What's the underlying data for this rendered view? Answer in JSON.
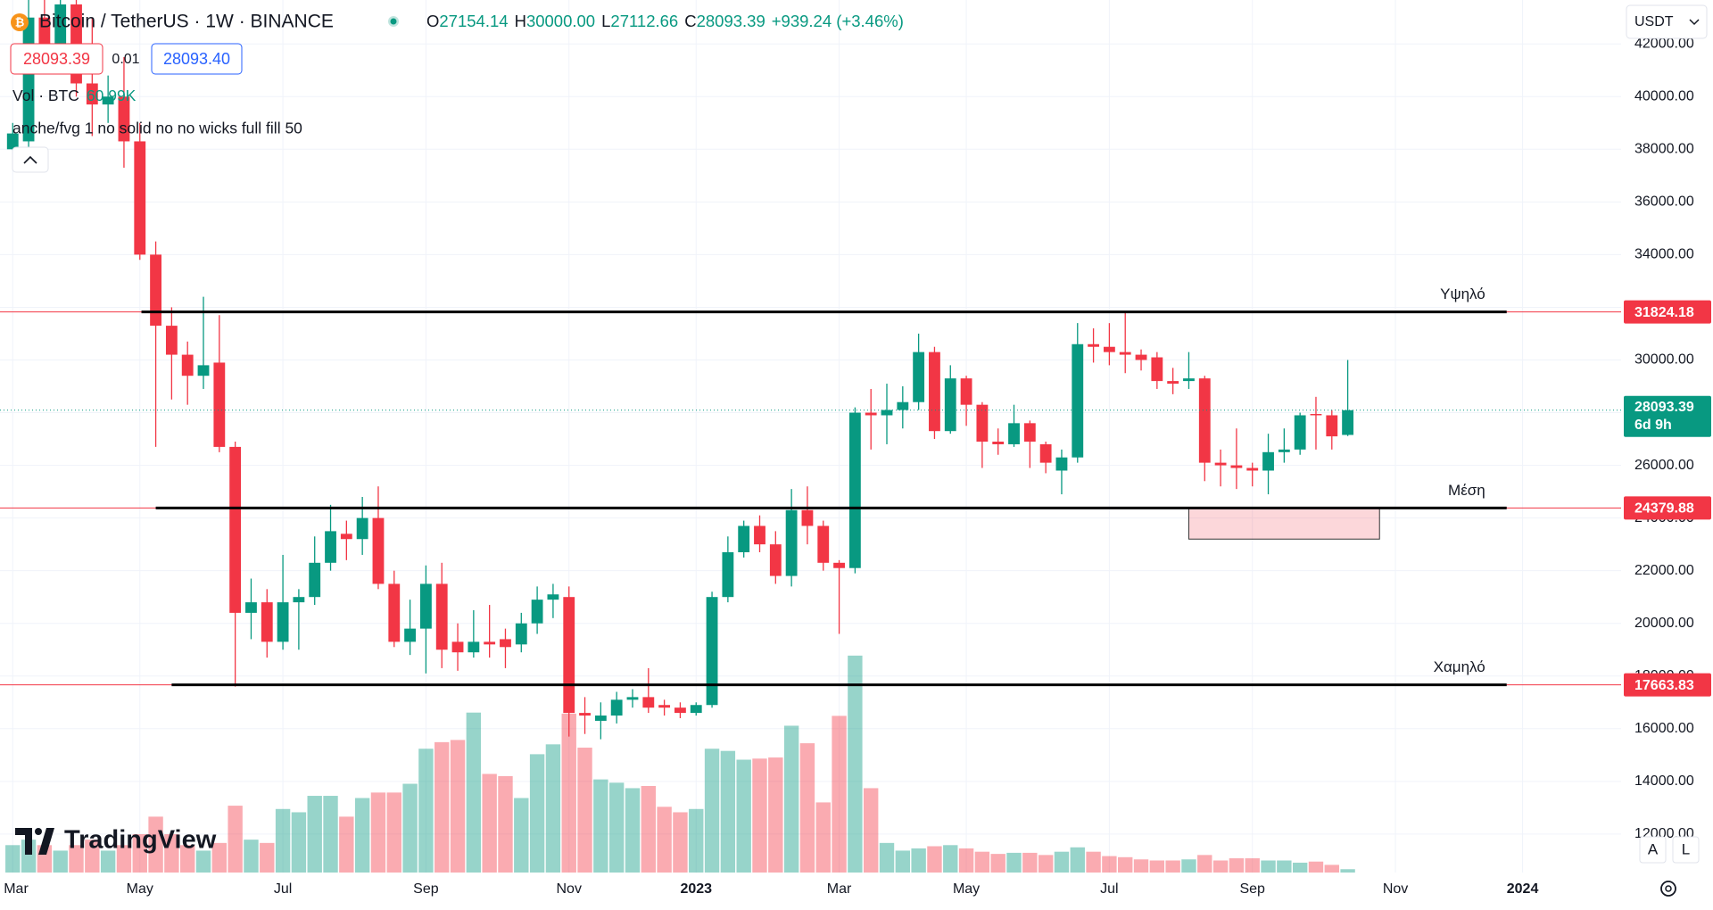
{
  "header": {
    "symbol": "Bitcoin / TetherUS · 1W · BINANCE",
    "ohlc": [
      {
        "key": "O",
        "value": "27154.14"
      },
      {
        "key": "H",
        "value": "30000.00"
      },
      {
        "key": "L",
        "value": "27112.66"
      },
      {
        "key": "C",
        "value": "28093.39"
      }
    ],
    "change": "+939.24 (+3.46%)",
    "sell": "28093.39",
    "spread": "0.01",
    "buy": "28093.40",
    "indicator": "anche/fvg 1 no solid no no wicks full fill 50",
    "currency": "USDT",
    "brand": "TradingView",
    "buttons": [
      "A",
      "L"
    ]
  },
  "chart_data": {
    "type": "candlestick",
    "colors": {
      "up": "#089981",
      "down": "#f23645"
    },
    "candles": [
      {
        "o": 38000,
        "h": 39000,
        "l": 37700,
        "c": 38600
      },
      {
        "o": 38300,
        "h": 45000,
        "l": 37800,
        "c": 43000
      },
      {
        "o": 43000,
        "h": 43800,
        "l": 41000,
        "c": 41500
      },
      {
        "o": 41500,
        "h": 44000,
        "l": 41000,
        "c": 43500
      },
      {
        "o": 43500,
        "h": 44200,
        "l": 40000,
        "c": 40500
      },
      {
        "o": 40500,
        "h": 43000,
        "l": 38500,
        "c": 39700
      },
      {
        "o": 39700,
        "h": 40800,
        "l": 39000,
        "c": 40000
      },
      {
        "o": 40000,
        "h": 41500,
        "l": 37300,
        "c": 38300
      },
      {
        "o": 38300,
        "h": 39000,
        "l": 33800,
        "c": 34000
      },
      {
        "o": 34000,
        "h": 34500,
        "l": 26700,
        "c": 31300
      },
      {
        "o": 31300,
        "h": 32000,
        "l": 28500,
        "c": 30200
      },
      {
        "o": 30200,
        "h": 30700,
        "l": 28300,
        "c": 29400
      },
      {
        "o": 29400,
        "h": 32400,
        "l": 28900,
        "c": 29800
      },
      {
        "o": 29900,
        "h": 31700,
        "l": 26500,
        "c": 26700
      },
      {
        "o": 26700,
        "h": 26900,
        "l": 17600,
        "c": 20400
      },
      {
        "o": 20400,
        "h": 21700,
        "l": 19400,
        "c": 20800
      },
      {
        "o": 20800,
        "h": 21300,
        "l": 18700,
        "c": 19300
      },
      {
        "o": 19300,
        "h": 22600,
        "l": 19000,
        "c": 20800
      },
      {
        "o": 20800,
        "h": 21300,
        "l": 19000,
        "c": 21000
      },
      {
        "o": 21000,
        "h": 23300,
        "l": 20700,
        "c": 22300
      },
      {
        "o": 22300,
        "h": 24500,
        "l": 22000,
        "c": 23500
      },
      {
        "o": 23400,
        "h": 23900,
        "l": 22400,
        "c": 23200
      },
      {
        "o": 23200,
        "h": 24800,
        "l": 22600,
        "c": 24000
      },
      {
        "o": 24000,
        "h": 25200,
        "l": 21300,
        "c": 21500
      },
      {
        "o": 21500,
        "h": 22000,
        "l": 19100,
        "c": 19300
      },
      {
        "o": 19300,
        "h": 20900,
        "l": 18800,
        "c": 19800
      },
      {
        "o": 19800,
        "h": 22200,
        "l": 18100,
        "c": 21500
      },
      {
        "o": 21500,
        "h": 22300,
        "l": 18300,
        "c": 19000
      },
      {
        "o": 19300,
        "h": 20000,
        "l": 18200,
        "c": 18900
      },
      {
        "o": 18900,
        "h": 20500,
        "l": 18700,
        "c": 19300
      },
      {
        "o": 19300,
        "h": 20700,
        "l": 18700,
        "c": 19200
      },
      {
        "o": 19400,
        "h": 19800,
        "l": 18300,
        "c": 19100
      },
      {
        "o": 19200,
        "h": 20400,
        "l": 18900,
        "c": 20000
      },
      {
        "o": 20000,
        "h": 21400,
        "l": 19600,
        "c": 20900
      },
      {
        "o": 20900,
        "h": 21500,
        "l": 20200,
        "c": 21100
      },
      {
        "o": 21000,
        "h": 21400,
        "l": 15700,
        "c": 16600
      },
      {
        "o": 16600,
        "h": 17200,
        "l": 15800,
        "c": 16500
      },
      {
        "o": 16300,
        "h": 17000,
        "l": 15600,
        "c": 16500
      },
      {
        "o": 16500,
        "h": 17400,
        "l": 16200,
        "c": 17100
      },
      {
        "o": 17100,
        "h": 17500,
        "l": 16800,
        "c": 17200
      },
      {
        "o": 17200,
        "h": 18300,
        "l": 16600,
        "c": 16800
      },
      {
        "o": 16900,
        "h": 17100,
        "l": 16500,
        "c": 16800
      },
      {
        "o": 16800,
        "h": 17000,
        "l": 16400,
        "c": 16600
      },
      {
        "o": 16600,
        "h": 17000,
        "l": 16500,
        "c": 16900
      },
      {
        "o": 16900,
        "h": 21200,
        "l": 16800,
        "c": 21000
      },
      {
        "o": 21000,
        "h": 23300,
        "l": 20800,
        "c": 22700
      },
      {
        "o": 22700,
        "h": 23900,
        "l": 22500,
        "c": 23700
      },
      {
        "o": 23700,
        "h": 24100,
        "l": 22700,
        "c": 23000
      },
      {
        "o": 23000,
        "h": 23500,
        "l": 21500,
        "c": 21800
      },
      {
        "o": 21800,
        "h": 25100,
        "l": 21400,
        "c": 24300
      },
      {
        "o": 24300,
        "h": 25200,
        "l": 23000,
        "c": 23700
      },
      {
        "o": 23700,
        "h": 23900,
        "l": 22000,
        "c": 22300
      },
      {
        "o": 22300,
        "h": 22400,
        "l": 19600,
        "c": 22100
      },
      {
        "o": 22100,
        "h": 28200,
        "l": 21900,
        "c": 28000
      },
      {
        "o": 28000,
        "h": 28900,
        "l": 26600,
        "c": 27900
      },
      {
        "o": 27900,
        "h": 29100,
        "l": 26800,
        "c": 28100
      },
      {
        "o": 28100,
        "h": 29000,
        "l": 27400,
        "c": 28400
      },
      {
        "o": 28400,
        "h": 31000,
        "l": 28100,
        "c": 30300
      },
      {
        "o": 30300,
        "h": 30500,
        "l": 27000,
        "c": 27300
      },
      {
        "o": 27300,
        "h": 29800,
        "l": 27200,
        "c": 29300
      },
      {
        "o": 29300,
        "h": 29400,
        "l": 27500,
        "c": 28300
      },
      {
        "o": 28300,
        "h": 28400,
        "l": 25900,
        "c": 26900
      },
      {
        "o": 26900,
        "h": 27400,
        "l": 26400,
        "c": 26800
      },
      {
        "o": 26800,
        "h": 28300,
        "l": 26700,
        "c": 27600
      },
      {
        "o": 27600,
        "h": 27700,
        "l": 25900,
        "c": 26900
      },
      {
        "o": 26800,
        "h": 26900,
        "l": 25700,
        "c": 26100
      },
      {
        "o": 25800,
        "h": 26600,
        "l": 24900,
        "c": 26300
      },
      {
        "o": 26300,
        "h": 31400,
        "l": 26100,
        "c": 30600
      },
      {
        "o": 30600,
        "h": 31200,
        "l": 29900,
        "c": 30500
      },
      {
        "o": 30500,
        "h": 31400,
        "l": 29800,
        "c": 30300
      },
      {
        "o": 30300,
        "h": 31800,
        "l": 29500,
        "c": 30200
      },
      {
        "o": 30200,
        "h": 30400,
        "l": 29600,
        "c": 30000
      },
      {
        "o": 30100,
        "h": 30300,
        "l": 28900,
        "c": 29200
      },
      {
        "o": 29200,
        "h": 29700,
        "l": 28700,
        "c": 29100
      },
      {
        "o": 29200,
        "h": 30300,
        "l": 28900,
        "c": 29300
      },
      {
        "o": 29300,
        "h": 29400,
        "l": 25400,
        "c": 26100
      },
      {
        "o": 26100,
        "h": 26600,
        "l": 25200,
        "c": 26000
      },
      {
        "o": 26000,
        "h": 27400,
        "l": 25100,
        "c": 25900
      },
      {
        "o": 25900,
        "h": 26100,
        "l": 25200,
        "c": 25800
      },
      {
        "o": 25800,
        "h": 27200,
        "l": 24900,
        "c": 26500
      },
      {
        "o": 26500,
        "h": 27400,
        "l": 26100,
        "c": 26600
      },
      {
        "o": 26600,
        "h": 28000,
        "l": 26400,
        "c": 27900
      },
      {
        "o": 27950,
        "h": 28600,
        "l": 26600,
        "c": 27900
      },
      {
        "o": 27900,
        "h": 28100,
        "l": 26600,
        "c": 27100
      },
      {
        "o": 27154.14,
        "h": 30000,
        "l": 27112.66,
        "c": 28093.39
      }
    ],
    "volume": {
      "name": "Vol · BTC",
      "values": [
        500,
        600,
        500,
        400,
        500,
        600,
        400,
        500,
        700,
        1020,
        700,
        500,
        400,
        540,
        1220,
        600,
        540,
        1160,
        1100,
        1400,
        1400,
        1020,
        1360,
        1460,
        1460,
        1620,
        2260,
        2380,
        2420,
        2920,
        1800,
        1760,
        1360,
        2160,
        2340,
        2900,
        2280,
        1700,
        1640,
        1540,
        1580,
        1200,
        1100,
        1160,
        2260,
        2220,
        2060,
        2080,
        2100,
        2680,
        2360,
        1280,
        2860,
        3960,
        1540,
        540,
        400,
        440,
        480,
        500,
        440,
        380,
        340,
        360,
        360,
        320,
        380,
        460,
        380,
        300,
        280,
        240,
        220,
        220,
        240,
        320,
        220,
        260,
        260,
        220,
        220,
        180,
        200,
        140,
        60.99
      ],
      "last_label": "60.99K"
    },
    "xlim": [
      -0.8,
      101.2
    ],
    "xticks": [
      {
        "value": 0,
        "label": "Mar"
      },
      {
        "value": 8,
        "label": "May"
      },
      {
        "value": 17,
        "label": "Jul"
      },
      {
        "value": 26,
        "label": "Sep"
      },
      {
        "value": 35,
        "label": "Nov"
      },
      {
        "value": 43,
        "label": "2023"
      },
      {
        "value": 52,
        "label": "Mar"
      },
      {
        "value": 60,
        "label": "May"
      },
      {
        "value": 69,
        "label": "Jul"
      },
      {
        "value": 78,
        "label": "Sep"
      },
      {
        "value": 87,
        "label": "Nov"
      },
      {
        "value": 95,
        "label": "2024"
      }
    ],
    "ylim": [
      10540,
      43667
    ],
    "yticks": [
      {
        "value": 12000,
        "label": "12000.00"
      },
      {
        "value": 14000,
        "label": "14000.00"
      },
      {
        "value": 16000,
        "label": "16000.00"
      },
      {
        "value": 18000,
        "label": "18000.00"
      },
      {
        "value": 20000,
        "label": "20000.00"
      },
      {
        "value": 22000,
        "label": "22000.00"
      },
      {
        "value": 24000,
        "label": "24000.00"
      },
      {
        "value": 26000,
        "label": "26000.00"
      },
      {
        "value": 28000,
        "label": "28000.00"
      },
      {
        "value": 30000,
        "label": "30000.00"
      },
      {
        "value": 32000,
        "label": "32000.00"
      },
      {
        "value": 34000,
        "label": "34000.00"
      },
      {
        "value": 36000,
        "label": "36000.00"
      },
      {
        "value": 38000,
        "label": "38000.00"
      },
      {
        "value": 40000,
        "label": "40000.00"
      },
      {
        "value": 42000,
        "label": "42000.00"
      }
    ],
    "grid": true,
    "levels": [
      {
        "name": "Υψηλό",
        "value": 31824.18,
        "x": [
          8.1,
          94
        ]
      },
      {
        "name": "Μέση",
        "value": 24379.88,
        "x": [
          9,
          94
        ]
      },
      {
        "name": "Χαμηλό",
        "value": 17663.83,
        "x": [
          10,
          94
        ]
      }
    ],
    "zone": {
      "x": [
        74,
        86
      ],
      "y": [
        23200,
        24400
      ]
    },
    "price_line": {
      "value": 28093.39,
      "countdown": "6d 9h"
    }
  }
}
